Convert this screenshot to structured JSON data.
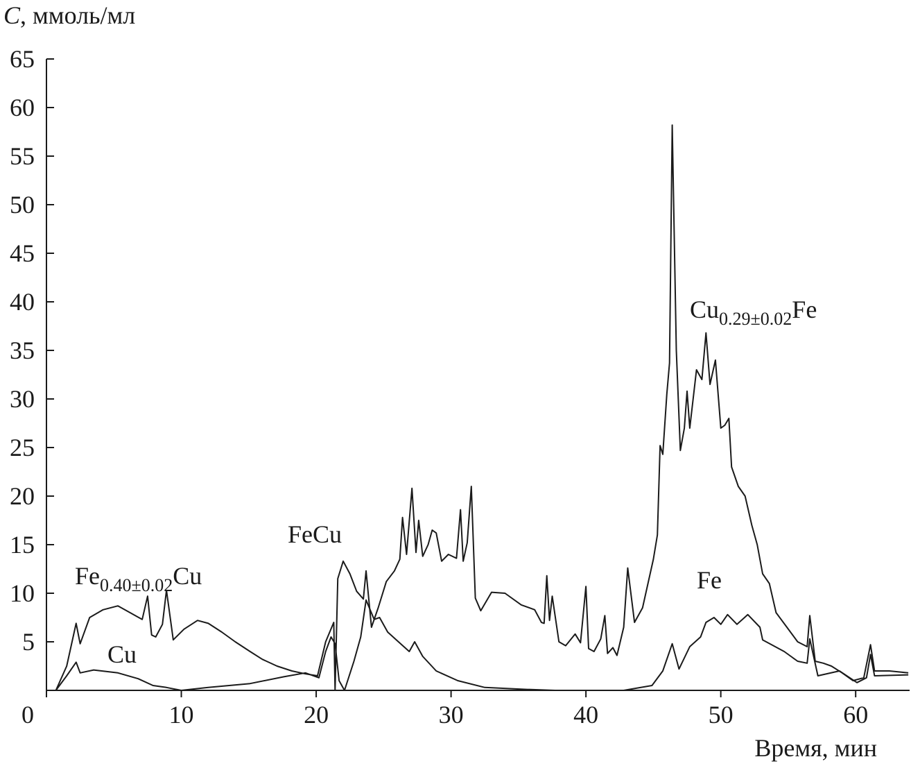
{
  "chart_data": {
    "type": "line",
    "ylabel": {
      "symbol": "C",
      "unit": ", ммоль/мл"
    },
    "xlabel": "Время, мин",
    "xlim": [
      0,
      64
    ],
    "xticks": [
      0,
      10,
      20,
      30,
      40,
      50,
      60
    ],
    "ylim": [
      0,
      65
    ],
    "yticks": [
      5,
      10,
      15,
      20,
      25,
      30,
      35,
      40,
      45,
      50,
      55,
      60,
      65
    ],
    "annotations": [
      {
        "base": "Fe",
        "sub": "0.40±0.02",
        "rest": "Cu"
      },
      {
        "base": "FeCu"
      },
      {
        "base": "Cu",
        "sub": "0.29±0.02",
        "rest": "Fe"
      },
      {
        "base": "Cu"
      },
      {
        "base": "Fe"
      }
    ],
    "series": [
      {
        "color": "#1a1a1a",
        "x": [
          0.7,
          1.5,
          2.2,
          2.5,
          3.2,
          4.2,
          5.3,
          6.2,
          7.1,
          7.5,
          7.8,
          8.1,
          8.6,
          8.9,
          9.4,
          10.2,
          11.2,
          12,
          13,
          14,
          15.1,
          16,
          17.1,
          18.2,
          19.2,
          20.1,
          20.7,
          21.3,
          21.4,
          21.6,
          22.0,
          22.5,
          23.0,
          23.5,
          23.7,
          24.1,
          24.6,
          25.2,
          25.8,
          26.2,
          26.4,
          26.7,
          27.1,
          27.4,
          27.6,
          27.9,
          28.3,
          28.6,
          28.9,
          29.3,
          29.8,
          30.4,
          30.7,
          30.9,
          31.2,
          31.5,
          31.8,
          32.2,
          33.0,
          34,
          35.2,
          36.2,
          36.7,
          36.9,
          37.1,
          37.3,
          37.5,
          38.0,
          38.5,
          39.2,
          39.6,
          40.0,
          40.2,
          40.6,
          41.1,
          41.4,
          41.6,
          42.0,
          42.3,
          42.8,
          43.1,
          43.6,
          44.2,
          45.0,
          45.3,
          45.5,
          45.7,
          46.0,
          46.2,
          46.4,
          46.7,
          47.0,
          47.3,
          47.5,
          47.7,
          48.2,
          48.6,
          48.9,
          49.2,
          49.6,
          50.0,
          50.3,
          50.6,
          50.8,
          51.3,
          51.8,
          52.3,
          52.7,
          53.1,
          53.6,
          54.1,
          54.9,
          55.7,
          56.4,
          56.6,
          57.0,
          57.6,
          58.2,
          59.0,
          59.8,
          60.6,
          61.1,
          61.4,
          62.5,
          63.9
        ],
        "values": [
          0,
          2.5,
          6.9,
          4.8,
          7.5,
          8.3,
          8.7,
          8.0,
          7.3,
          9.7,
          5.7,
          5.5,
          6.8,
          10.3,
          5.2,
          6.3,
          7.2,
          6.9,
          6.0,
          5.0,
          4.0,
          3.2,
          2.5,
          2.0,
          1.7,
          1.5,
          5.0,
          7.0,
          0,
          11.5,
          13.3,
          12.0,
          10.2,
          9.4,
          12.3,
          6.5,
          8.5,
          11.2,
          12.3,
          13.5,
          17.8,
          14.0,
          20.8,
          14.2,
          17.5,
          13.8,
          15.0,
          16.5,
          16.2,
          13.3,
          14.0,
          13.6,
          18.6,
          13.3,
          15.2,
          21.0,
          9.5,
          8.2,
          10.1,
          10.0,
          8.8,
          8.3,
          7.0,
          6.9,
          11.8,
          7.2,
          9.7,
          5.0,
          4.6,
          5.8,
          4.9,
          10.7,
          4.3,
          4.0,
          5.3,
          7.7,
          3.8,
          4.4,
          3.6,
          6.5,
          12.6,
          7.0,
          8.5,
          13.5,
          16.0,
          25.2,
          24.3,
          30.5,
          33.7,
          58.2,
          35.0,
          24.7,
          27.0,
          30.8,
          27.0,
          33.0,
          32.0,
          36.8,
          31.5,
          34.0,
          27.0,
          27.3,
          28.0,
          23.0,
          21.0,
          20.0,
          17.0,
          15.0,
          12.0,
          11.0,
          8.0,
          6.5,
          5.0,
          4.5,
          7.7,
          3.0,
          2.8,
          2.5,
          1.8,
          1.0,
          1.3,
          4.7,
          2.0,
          2.0,
          1.8
        ]
      },
      {
        "color": "#1a1a1a",
        "x": [
          0.7,
          1.5,
          2.2,
          2.5,
          3.5,
          5.3,
          6.8,
          7.9,
          8.9,
          10,
          12,
          15.1,
          17.6,
          19.2,
          20.2,
          20.7,
          21.1,
          21.4,
          21.7,
          22.1,
          22.8,
          23.3,
          23.7,
          24.3,
          24.7,
          25.3,
          26.1,
          26.9,
          27.3,
          27.9,
          28.9,
          30.5,
          32.5,
          35.6,
          37.7,
          42.8,
          44.9,
          45.7,
          46.4,
          46.9,
          47.7,
          48.5,
          48.9,
          49.5,
          50.0,
          50.5,
          51.2,
          52.0,
          52.9,
          53.1,
          54.7,
          55.7,
          56.4,
          56.6,
          57.2,
          58.8,
          60.1,
          60.8,
          61.1,
          61.4,
          63.9
        ],
        "values": [
          0,
          1.5,
          2.9,
          1.8,
          2.1,
          1.8,
          1.2,
          0.5,
          0.3,
          0,
          0.3,
          0.7,
          1.4,
          1.8,
          1.3,
          4.0,
          5.5,
          4.8,
          1.0,
          0,
          3.0,
          5.5,
          9.3,
          7.3,
          7.5,
          6.0,
          5.0,
          4.0,
          5.0,
          3.5,
          2.0,
          1.0,
          0.3,
          0.1,
          0,
          0,
          0.5,
          2.0,
          4.8,
          2.2,
          4.5,
          5.5,
          7.0,
          7.5,
          6.8,
          7.8,
          6.8,
          7.8,
          6.5,
          5.2,
          4.0,
          3.0,
          2.8,
          5.3,
          1.5,
          2.0,
          0.8,
          1.3,
          3.7,
          1.5,
          1.6
        ]
      }
    ]
  }
}
